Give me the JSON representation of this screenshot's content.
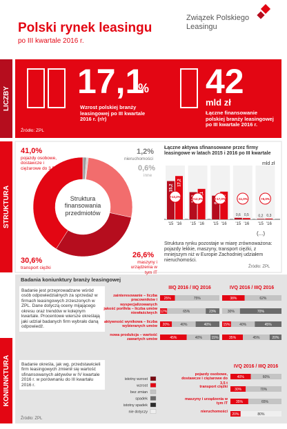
{
  "header": {
    "title": "Polski rynek leasingu",
    "subtitle": "po III kwartale 2016 r.",
    "logo": "Związek Polskiego Leasingu"
  },
  "numbers": {
    "tab": "LICZBY",
    "items": [
      {
        "value": "17,1",
        "unit": "%",
        "text": "Wzrost polskiej branży leasingowej po III kwartale 2016 r. (r/r)"
      },
      {
        "value": "42",
        "unit": "mld zł",
        "text": "Łączne finansowanie polskiej branży leasingowej po III kwartale 2016 r."
      }
    ],
    "source": "Źródło: ZPL"
  },
  "structure": {
    "tab": "STRUKTURA",
    "donut_title": "Struktura finansowania przedmiotów",
    "segments": [
      {
        "value": 1.2,
        "label": "1,2%",
        "name": "nieruchomości",
        "color": "#9e9e9e"
      },
      {
        "value": 0.6,
        "label": "0,6%",
        "name": "inne",
        "color": "#cfcfcf"
      },
      {
        "value": 26.6,
        "label": "26,6%",
        "name": "maszyny i urządzenia w tym IT",
        "color": "#f26d6d"
      },
      {
        "value": 30.6,
        "label": "30,6%",
        "name": "transport ciężki",
        "color": "#b50d1e"
      },
      {
        "value": 41.0,
        "label": "41,0%",
        "name": "pojazdy osobowe, dostawcze i ciężarowe do 3,5 t",
        "color": "#e30613"
      }
    ],
    "bars": {
      "title": "Łączne aktywa sfinansowane przez firmy leasingowe w latach 2015 i 2016 po III kwartale",
      "unit": "mld zł",
      "years": [
        "'15",
        "'16"
      ],
      "ylim": [
        0,
        20
      ],
      "colors": [
        "#b50d1e",
        "#e30613"
      ],
      "groups": [
        {
          "values": [
            15.2,
            17.2
          ],
          "value_labels": [
            "15,2",
            "17,2"
          ],
          "change": "+13,2%"
        },
        {
          "values": [
            10.8,
            12.1
          ],
          "value_labels": [
            "10,8",
            "12,1"
          ],
          "change": "+12,0%"
        },
        {
          "values": [
            9.4,
            11.0
          ],
          "value_labels": [
            "9,4",
            "11,0"
          ],
          "change": "+17,0%"
        },
        {
          "values": [
            0.6,
            0.5
          ],
          "value_labels": [
            "0,6",
            "0,5"
          ],
          "change": "-11,0%"
        },
        {
          "values": [
            0.2,
            0.3
          ],
          "value_labels": [
            "0,2",
            "0,3"
          ],
          "change": "+5,0%"
        }
      ],
      "other": "(...)"
    },
    "note": "Struktura rynku pozostaje w miarę zrównoważona: pojazdy lekkie, maszyny, transport ciężki, z mniejszym niż w Europie Zachodniej udziałem nieruchomości.",
    "source": "Źródło: ZPL"
  },
  "survey": {
    "tab": "KONIUNKTURA",
    "title": "Badania koniunktury branży leasingowej",
    "text1": "Badanie jest przeprowadzane wśród osób odpowiedzialnych za sprzedaż w firmach leasingowych zrzeszonych w ZPL. Dane dotyczą oceny mijającego okresu oraz trendów w kolejnym kwartale. Procentowe wiersze określają jaki udział badanych firm wybrało daną odpowiedź.",
    "text2": "Badanie określa, jak wg. przedstawicieli firm leasingowych zmienił się wartość sfinansowanych aktywów w IV kwartale 2016 r. w porównaniu do III kwartału 2016 r.",
    "legend": [
      {
        "name": "istotny wzrost",
        "color": "#7a0a12"
      },
      {
        "name": "wzrost",
        "color": "#e30613"
      },
      {
        "name": "bez zmian",
        "color": "#c4c4c4"
      },
      {
        "name": "spadek",
        "color": "#6b6b6b"
      },
      {
        "name": "istotny spadek",
        "color": "#2b2b2b"
      },
      {
        "name": "nie dotyczy",
        "color": "#efefef"
      }
    ],
    "periods": [
      "IIIQ 2016 / IIQ 2016",
      "IVQ 2016 / IIIQ 2016"
    ],
    "rows": [
      {
        "name": "zainteresowanie – liczba pracowników i wyspecjalizowanych",
        "bars": [
          [
            {
              "k": 1,
              "v": 25,
              "label": "25%"
            },
            {
              "k": 2,
              "v": 75,
              "label": "75%"
            }
          ],
          [
            {
              "k": 1,
              "v": 38,
              "label": "38%"
            },
            {
              "k": 2,
              "v": 62,
              "label": "62%"
            }
          ]
        ]
      },
      {
        "name": "jakość portfela – liczba umów niewłaściwych",
        "bars": [
          [
            {
              "k": 1,
              "v": 12,
              "label": "12%"
            },
            {
              "k": 2,
              "v": 65,
              "label": "65%"
            },
            {
              "k": 3,
              "v": 23,
              "label": "23%"
            }
          ],
          [
            {
              "k": 2,
              "v": 30,
              "label": "30%"
            },
            {
              "k": 3,
              "v": 70,
              "label": "70%"
            }
          ]
        ]
      },
      {
        "name": "aktywność wynikowa – liczba wybieranych umów",
        "bars": [
          [
            {
              "k": 1,
              "v": 20,
              "label": "20%"
            },
            {
              "k": 2,
              "v": 40,
              "label": "40%"
            },
            {
              "k": 3,
              "v": 40,
              "label": "40%"
            }
          ],
          [
            {
              "k": 1,
              "v": 15,
              "label": "15%"
            },
            {
              "k": 2,
              "v": 40,
              "label": "40%"
            },
            {
              "k": 3,
              "v": 45,
              "label": "45%"
            }
          ]
        ]
      },
      {
        "name": "nowa produkcja – wartość zawartych umów",
        "bars": [
          [
            {
              "k": 1,
              "v": 45,
              "label": "45%"
            },
            {
              "k": 2,
              "v": 40,
              "label": "40%"
            },
            {
              "k": 3,
              "v": 15,
              "label": "15%"
            }
          ],
          [
            {
              "k": 1,
              "v": 35,
              "label": "35%"
            },
            {
              "k": 2,
              "v": 45,
              "label": "45%"
            },
            {
              "k": 3,
              "v": 20,
              "label": "20%"
            }
          ]
        ]
      }
    ],
    "assets": {
      "period": "IVQ 2016 / IIIQ 2016",
      "rows": [
        {
          "name": "pojazdy osobowe, dostawcze i ciężarowe do 3,5 t",
          "segments": [
            {
              "k": 1,
              "v": 40,
              "label": "40%"
            },
            {
              "k": 2,
              "v": 60,
              "label": "60%"
            }
          ]
        },
        {
          "name": "transport ciężki",
          "segments": [
            {
              "k": 1,
              "v": 30,
              "label": "30%"
            },
            {
              "k": 2,
              "v": 70,
              "label": "70%"
            }
          ]
        },
        {
          "name": "maszyny i urządzenia w tym IT",
          "segments": [
            {
              "k": 1,
              "v": 35,
              "label": "35%"
            },
            {
              "k": 2,
              "v": 65,
              "label": "65%"
            }
          ]
        },
        {
          "name": "nieruchomości",
          "segments": [
            {
              "k": 1,
              "v": 20,
              "label": "20%"
            },
            {
              "k": 5,
              "v": 80,
              "label": "80%"
            }
          ]
        }
      ]
    },
    "source": "Źródło: ZPL"
  }
}
